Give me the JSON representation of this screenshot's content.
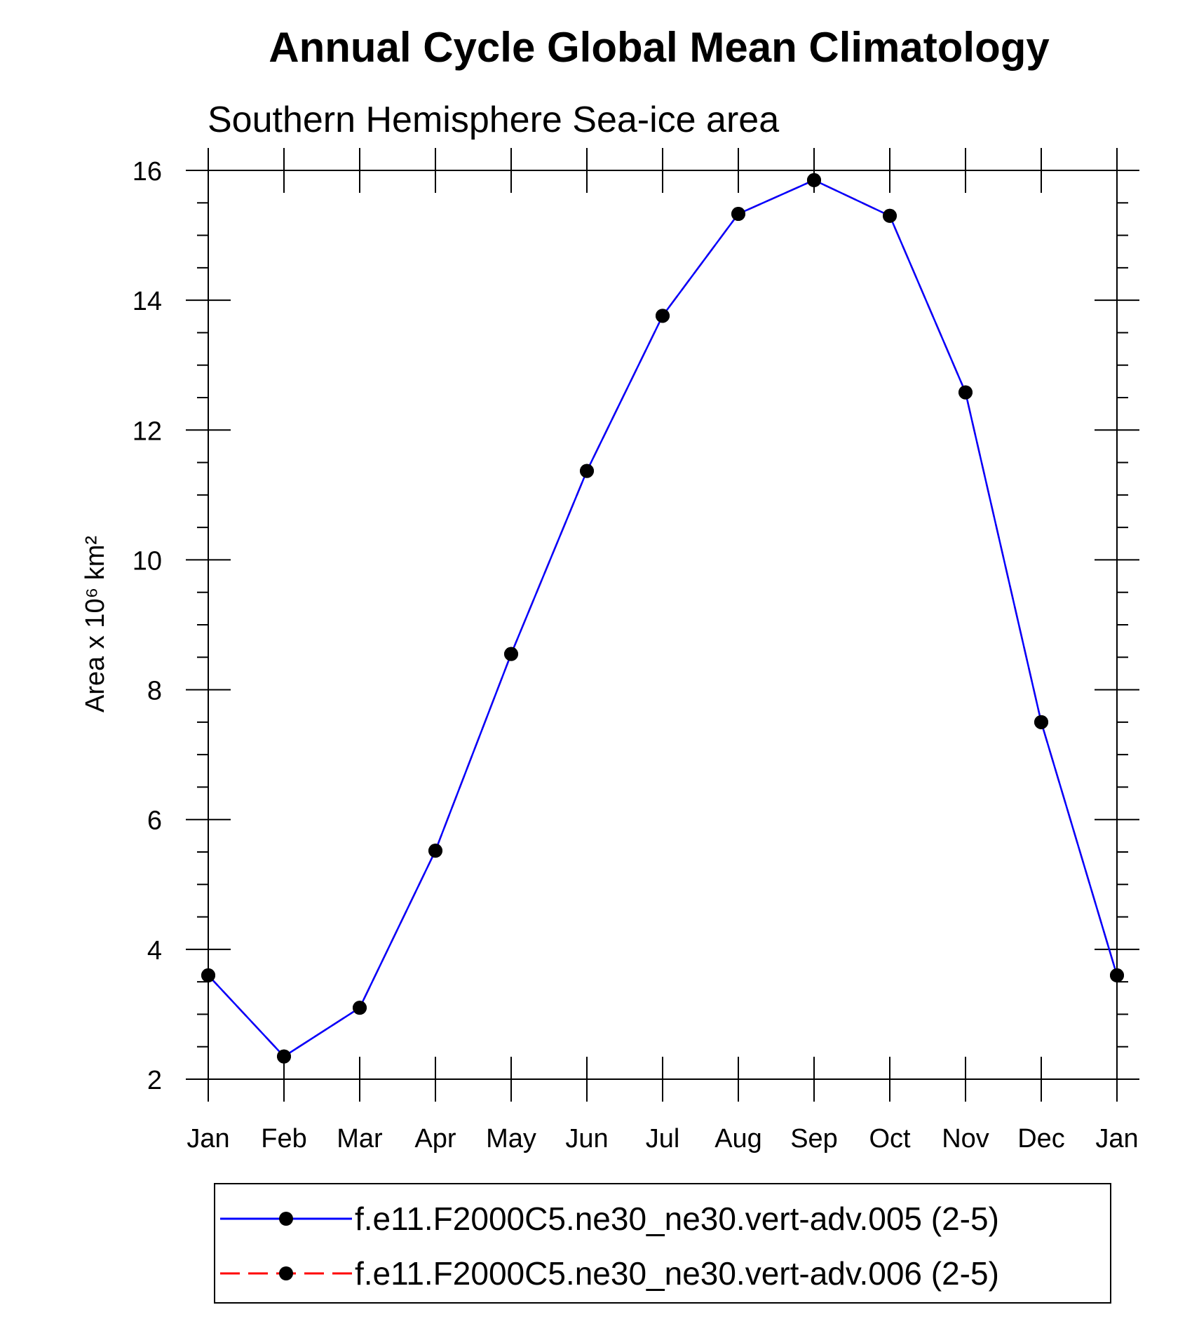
{
  "chart_data": {
    "type": "line",
    "title": "Annual Cycle Global Mean Climatology",
    "subtitle": "Southern Hemisphere Sea-ice area",
    "ylabel": "Area x 10⁶ km²",
    "xlabel": "",
    "categories": [
      "Jan",
      "Feb",
      "Mar",
      "Apr",
      "May",
      "Jun",
      "Jul",
      "Aug",
      "Sep",
      "Oct",
      "Nov",
      "Dec",
      "Jan"
    ],
    "ylim": [
      2,
      16
    ],
    "yticks": [
      2,
      4,
      6,
      8,
      10,
      12,
      14,
      16
    ],
    "series": [
      {
        "name": "f.e11.F2000C5.ne30_ne30.vert-adv.005 (2-5)",
        "color": "#0000ff",
        "line_style": "solid",
        "values": [
          3.6,
          2.35,
          3.1,
          5.52,
          8.55,
          11.37,
          13.76,
          15.33,
          15.85,
          15.3,
          12.58,
          7.5,
          3.6
        ]
      },
      {
        "name": "f.e11.F2000C5.ne30_ne30.vert-adv.006 (2-5)",
        "color": "#ff0000",
        "line_style": "dashed",
        "values": [
          3.6,
          2.35,
          3.1,
          5.52,
          8.55,
          11.37,
          13.76,
          15.33,
          15.85,
          15.3,
          12.58,
          7.5,
          3.6
        ]
      }
    ],
    "legend_position": "bottom"
  }
}
